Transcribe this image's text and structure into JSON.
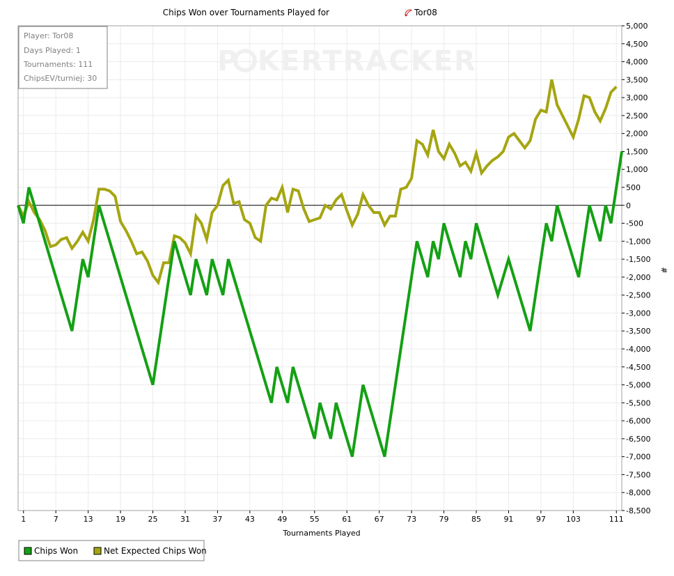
{
  "chart_data": {
    "type": "line",
    "title": "Chips Won over Tournaments Played for",
    "player_name": "Tor08",
    "xlabel": "Tournaments Played",
    "ylabel": "#",
    "xlim": [
      0,
      112
    ],
    "ylim": [
      -8500,
      5000
    ],
    "y_step": 500,
    "x_ticks": [
      1,
      7,
      13,
      19,
      25,
      31,
      37,
      43,
      49,
      55,
      61,
      67,
      73,
      79,
      85,
      91,
      97,
      103,
      111
    ],
    "grid": true,
    "legend_position": "bottom-left",
    "info_box": {
      "lines": [
        "Player: Tor08",
        "Days Played: 1",
        "Tournaments: 111",
        "ChipsEV/turniej: 30"
      ]
    },
    "watermark": "POKERTRACKER",
    "series": [
      {
        "name": "Chips Won",
        "color": "#14a014",
        "points": [
          [
            0,
            0
          ],
          [
            1,
            -500
          ],
          [
            2,
            500
          ],
          [
            10,
            -3500
          ],
          [
            12,
            -1500
          ],
          [
            13,
            -2000
          ],
          [
            15,
            0
          ],
          [
            25,
            -5000
          ],
          [
            29,
            -1000
          ],
          [
            32,
            -2500
          ],
          [
            33,
            -1500
          ],
          [
            35,
            -2500
          ],
          [
            36,
            -1500
          ],
          [
            38,
            -2500
          ],
          [
            39,
            -1500
          ],
          [
            47,
            -5500
          ],
          [
            48,
            -4500
          ],
          [
            50,
            -5500
          ],
          [
            51,
            -4500
          ],
          [
            55,
            -6500
          ],
          [
            56,
            -5500
          ],
          [
            58,
            -6500
          ],
          [
            59,
            -5500
          ],
          [
            62,
            -7000
          ],
          [
            64,
            -5000
          ],
          [
            68,
            -7000
          ],
          [
            74,
            -1000
          ],
          [
            76,
            -2000
          ],
          [
            77,
            -1000
          ],
          [
            78,
            -1500
          ],
          [
            79,
            -500
          ],
          [
            82,
            -2000
          ],
          [
            83,
            -1000
          ],
          [
            84,
            -1500
          ],
          [
            85,
            -500
          ],
          [
            89,
            -2500
          ],
          [
            91,
            -1500
          ],
          [
            95,
            -3500
          ],
          [
            98,
            -500
          ],
          [
            99,
            -1000
          ],
          [
            100,
            0
          ],
          [
            104,
            -2000
          ],
          [
            106,
            0
          ],
          [
            108,
            -1000
          ],
          [
            109,
            0
          ],
          [
            110,
            -500
          ],
          [
            112,
            1500
          ]
        ]
      },
      {
        "name": "Net Expected Chips Won",
        "color": "#a5a512",
        "points": [
          [
            0,
            0
          ],
          [
            1,
            -300
          ],
          [
            2,
            100
          ],
          [
            3,
            -200
          ],
          [
            4,
            -400
          ],
          [
            5,
            -700
          ],
          [
            6,
            -1150
          ],
          [
            7,
            -1100
          ],
          [
            8,
            -950
          ],
          [
            9,
            -900
          ],
          [
            10,
            -1200
          ],
          [
            11,
            -1000
          ],
          [
            12,
            -750
          ],
          [
            13,
            -1000
          ],
          [
            14,
            -400
          ],
          [
            15,
            450
          ],
          [
            16,
            450
          ],
          [
            17,
            400
          ],
          [
            18,
            250
          ],
          [
            19,
            -450
          ],
          [
            20,
            -700
          ],
          [
            21,
            -1000
          ],
          [
            22,
            -1350
          ],
          [
            23,
            -1300
          ],
          [
            24,
            -1550
          ],
          [
            25,
            -1950
          ],
          [
            26,
            -2150
          ],
          [
            27,
            -1600
          ],
          [
            28,
            -1600
          ],
          [
            29,
            -850
          ],
          [
            30,
            -900
          ],
          [
            31,
            -1050
          ],
          [
            32,
            -1350
          ],
          [
            33,
            -300
          ],
          [
            34,
            -500
          ],
          [
            35,
            -950
          ],
          [
            36,
            -200
          ],
          [
            37,
            0
          ],
          [
            38,
            550
          ],
          [
            39,
            700
          ],
          [
            40,
            50
          ],
          [
            41,
            100
          ],
          [
            42,
            -400
          ],
          [
            43,
            -500
          ],
          [
            44,
            -900
          ],
          [
            45,
            -1000
          ],
          [
            46,
            0
          ],
          [
            47,
            200
          ],
          [
            48,
            150
          ],
          [
            49,
            500
          ],
          [
            50,
            -200
          ],
          [
            51,
            450
          ],
          [
            52,
            400
          ],
          [
            53,
            -100
          ],
          [
            54,
            -450
          ],
          [
            55,
            -400
          ],
          [
            56,
            -350
          ],
          [
            57,
            0
          ],
          [
            58,
            -100
          ],
          [
            59,
            150
          ],
          [
            60,
            300
          ],
          [
            61,
            -150
          ],
          [
            62,
            -550
          ],
          [
            63,
            -250
          ],
          [
            64,
            300
          ],
          [
            65,
            0
          ],
          [
            66,
            -200
          ],
          [
            67,
            -200
          ],
          [
            68,
            -550
          ],
          [
            69,
            -300
          ],
          [
            70,
            -300
          ],
          [
            71,
            450
          ],
          [
            72,
            500
          ],
          [
            73,
            750
          ],
          [
            74,
            1800
          ],
          [
            75,
            1700
          ],
          [
            76,
            1400
          ],
          [
            77,
            2100
          ],
          [
            78,
            1500
          ],
          [
            79,
            1300
          ],
          [
            80,
            1700
          ],
          [
            81,
            1450
          ],
          [
            82,
            1100
          ],
          [
            83,
            1200
          ],
          [
            84,
            950
          ],
          [
            85,
            1450
          ],
          [
            86,
            900
          ],
          [
            87,
            1100
          ],
          [
            88,
            1250
          ],
          [
            89,
            1350
          ],
          [
            90,
            1500
          ],
          [
            91,
            1900
          ],
          [
            92,
            2000
          ],
          [
            93,
            1800
          ],
          [
            94,
            1600
          ],
          [
            95,
            1800
          ],
          [
            96,
            2400
          ],
          [
            97,
            2650
          ],
          [
            98,
            2600
          ],
          [
            99,
            3500
          ],
          [
            100,
            2800
          ],
          [
            101,
            2500
          ],
          [
            102,
            2200
          ],
          [
            103,
            1900
          ],
          [
            104,
            2400
          ],
          [
            105,
            3050
          ],
          [
            106,
            3000
          ],
          [
            107,
            2600
          ],
          [
            108,
            2350
          ],
          [
            109,
            2700
          ],
          [
            110,
            3150
          ],
          [
            111,
            3300
          ]
        ]
      }
    ]
  }
}
